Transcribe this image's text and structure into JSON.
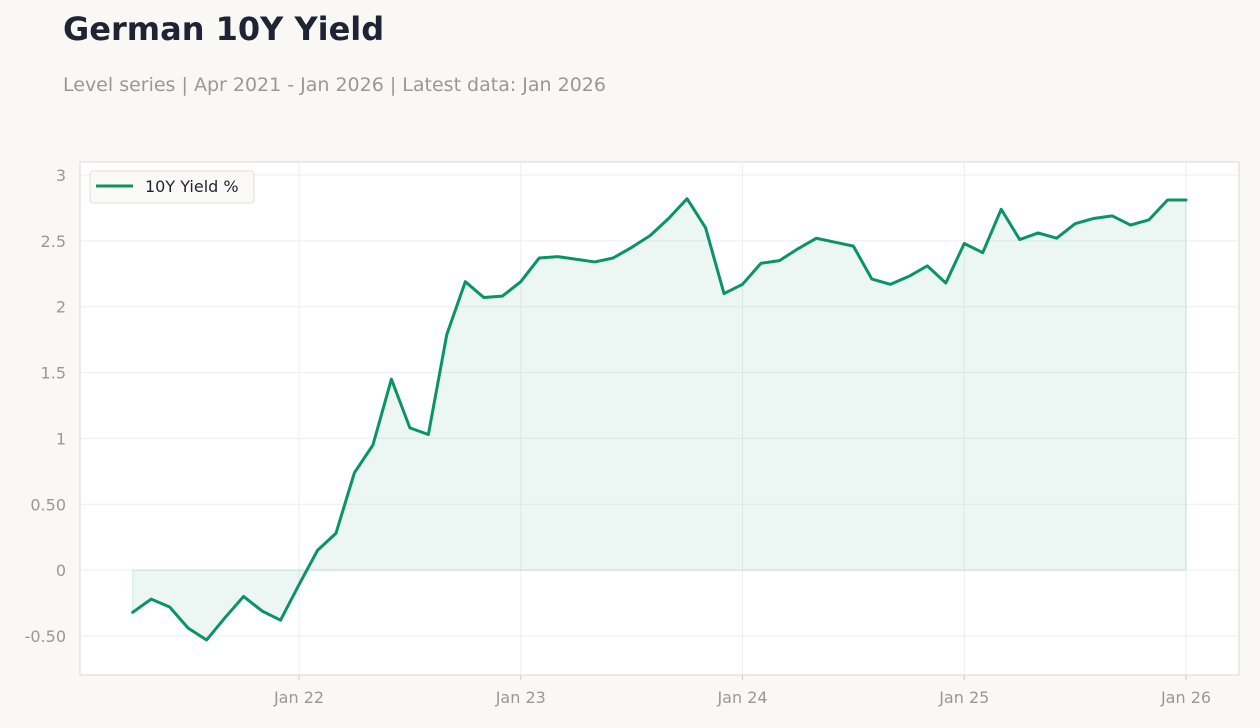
{
  "header": {
    "title": "German 10Y Yield",
    "subtitle": "Level series | Apr 2021 - Jan 2026 | Latest data: Jan 2026"
  },
  "colors": {
    "line": "#0a9466",
    "fill": "#0a9466",
    "background": "#f9f8f5",
    "plot_background": "#ffffff",
    "grid": "#eeeeee",
    "tick_text": "#9a9893",
    "title_text": "#1e2433"
  },
  "chart_data": {
    "type": "area",
    "title": "German 10Y Yield",
    "subtitle": "Level series | Apr 2021 - Jan 2026 | Latest data: Jan 2026",
    "xlabel": "",
    "ylabel": "",
    "ylim": [
      -0.8,
      3.08
    ],
    "y_ticks": [
      -0.5,
      0,
      0.5,
      1,
      1.5,
      2,
      2.5,
      3
    ],
    "y_tick_labels": [
      "-0.50",
      "0",
      "0.50",
      "1",
      "1.5",
      "2",
      "2.5",
      "3"
    ],
    "x_ticks": [
      "2022-01",
      "2023-01",
      "2024-01",
      "2025-01",
      "2026-01"
    ],
    "x_tick_labels": [
      "Jan 22",
      "Jan 23",
      "Jan 24",
      "Jan 25",
      "Jan 26"
    ],
    "grid": true,
    "legend": {
      "position": "top-left"
    },
    "series": [
      {
        "name": "10Y Yield %",
        "x": [
          "2021-04",
          "2021-05",
          "2021-06",
          "2021-07",
          "2021-08",
          "2021-09",
          "2021-10",
          "2021-11",
          "2021-12",
          "2022-01",
          "2022-02",
          "2022-03",
          "2022-04",
          "2022-05",
          "2022-06",
          "2022-07",
          "2022-08",
          "2022-09",
          "2022-10",
          "2022-11",
          "2022-12",
          "2023-01",
          "2023-02",
          "2023-03",
          "2023-04",
          "2023-05",
          "2023-06",
          "2023-07",
          "2023-08",
          "2023-09",
          "2023-10",
          "2023-11",
          "2023-12",
          "2024-01",
          "2024-02",
          "2024-03",
          "2024-04",
          "2024-05",
          "2024-06",
          "2024-07",
          "2024-08",
          "2024-09",
          "2024-10",
          "2024-11",
          "2024-12",
          "2025-01",
          "2025-02",
          "2025-03",
          "2025-04",
          "2025-05",
          "2025-06",
          "2025-07",
          "2025-08",
          "2025-09",
          "2025-10",
          "2025-11",
          "2025-12",
          "2026-01"
        ],
        "values": [
          -0.32,
          -0.22,
          -0.28,
          -0.44,
          -0.53,
          -0.36,
          -0.2,
          -0.31,
          -0.38,
          -0.11,
          0.15,
          0.28,
          0.74,
          0.95,
          1.45,
          1.08,
          1.03,
          1.79,
          2.19,
          2.07,
          2.08,
          2.19,
          2.37,
          2.38,
          2.36,
          2.34,
          2.37,
          2.45,
          2.54,
          2.67,
          2.82,
          2.6,
          2.1,
          2.17,
          2.33,
          2.35,
          2.44,
          2.52,
          2.49,
          2.46,
          2.21,
          2.17,
          2.23,
          2.31,
          2.18,
          2.48,
          2.41,
          2.74,
          2.51,
          2.56,
          2.52,
          2.63,
          2.67,
          2.69,
          2.62,
          2.66,
          2.81,
          2.81
        ]
      }
    ]
  }
}
